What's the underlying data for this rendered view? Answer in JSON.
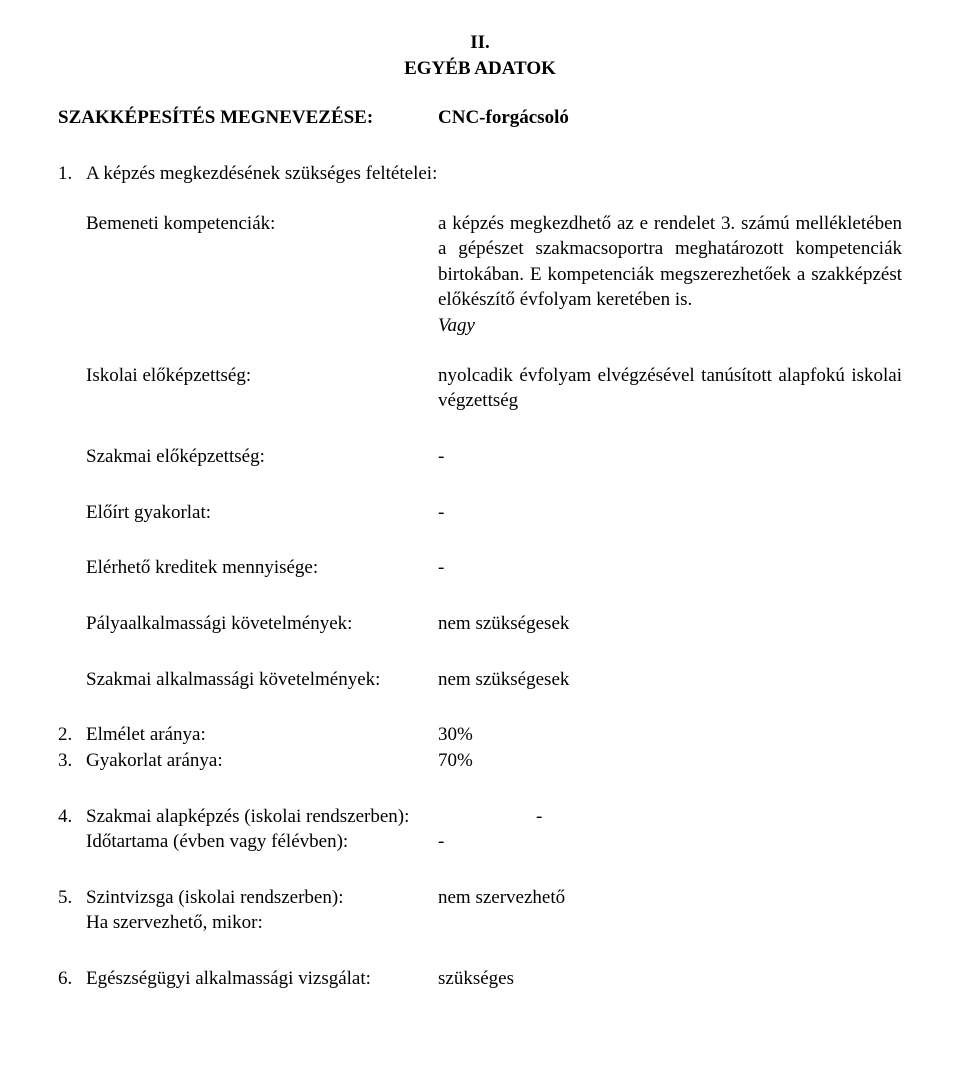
{
  "section_header": {
    "roman": "II.",
    "title": "EGYÉB ADATOK"
  },
  "qualification": {
    "label": "SZAKKÉPESÍTÉS MEGNEVEZÉSE:",
    "value": "CNC-forgácsoló"
  },
  "item1": {
    "num": "1.",
    "text": "A képzés megkezdésének szükséges feltételei:"
  },
  "bemeneti": {
    "label": "Bemeneti kompetenciák:",
    "value": "a képzés megkezdhető az e rendelet 3. számú mellékletében a gépészet szakmacsoportra meghatározott kompetenciák birtokában. E kompetenciák megszerezhetőek a szakképzést előkészítő évfolyam keretében is.",
    "vagy": "Vagy"
  },
  "iskolai": {
    "label": "Iskolai előképzettség:",
    "value": "nyolcadik évfolyam elvégzésével tanúsított alapfokú iskolai végzettség"
  },
  "szakmai_elokepzettseg": {
    "label": "Szakmai előképzettség:",
    "value": "-"
  },
  "eloirt_gyakorlat": {
    "label": "Előírt gyakorlat:",
    "value": "-"
  },
  "kreditek": {
    "label": "Elérhető kreditek mennyisége:",
    "value": "-"
  },
  "palyaalkalmassagi": {
    "label": "Pályaalkalmassági követelmények:",
    "value": "nem szükségesek"
  },
  "szakmai_alkalmassagi": {
    "label": "Szakmai alkalmassági követelmények:",
    "value": "nem szükségesek"
  },
  "item2": {
    "num": "2.",
    "label": "Elmélet aránya:",
    "value": "30%"
  },
  "item3": {
    "num": "3.",
    "label": "Gyakorlat aránya:",
    "value": "70%"
  },
  "item4": {
    "num": "4.",
    "line1_label": "Szakmai alapképzés (iskolai rendszerben):",
    "line1_value": "-",
    "line2_label": "Időtartama (évben vagy félévben):",
    "line2_value": "-"
  },
  "item5": {
    "num": "5.",
    "line1_label": "Szintvizsga (iskolai rendszerben):",
    "line1_value": "nem szervezhető",
    "line2_label": "Ha szervezhető, mikor:"
  },
  "item6": {
    "num": "6.",
    "label": "Egészségügyi alkalmassági vizsgálat:",
    "value": "szükséges"
  }
}
